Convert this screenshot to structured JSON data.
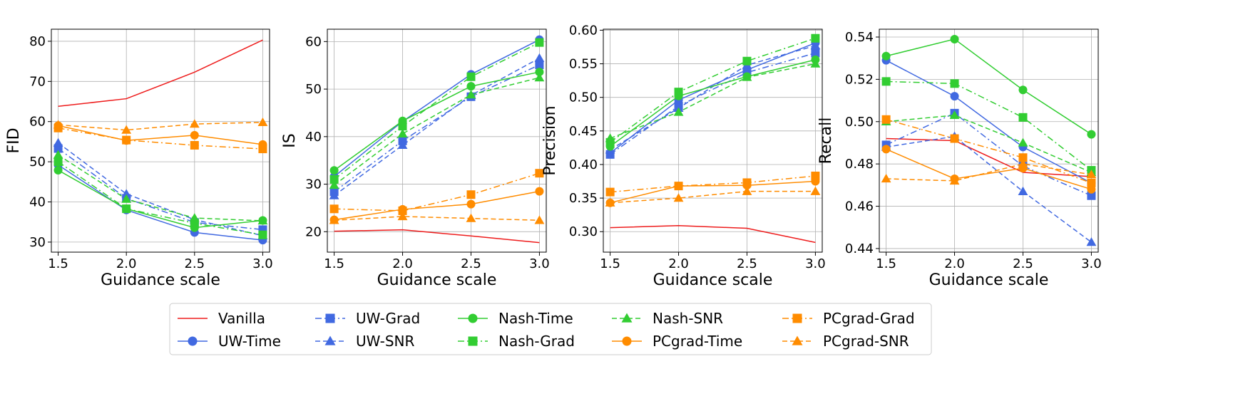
{
  "figure": {
    "legend_location": "bottom-center",
    "legend_columns": 5
  },
  "series_styles": {
    "Vanilla": {
      "color": "#ee1c1c",
      "dash": "solid",
      "marker": "none"
    },
    "UW-Time": {
      "color": "#4169e1",
      "dash": "solid",
      "marker": "circle"
    },
    "UW-Grad": {
      "color": "#4169e1",
      "dash": "dashdot",
      "marker": "square"
    },
    "UW-SNR": {
      "color": "#4169e1",
      "dash": "dashed",
      "marker": "triangle"
    },
    "Nash-Time": {
      "color": "#32cd32",
      "dash": "solid",
      "marker": "circle"
    },
    "Nash-Grad": {
      "color": "#32cd32",
      "dash": "dashdot",
      "marker": "square"
    },
    "Nash-SNR": {
      "color": "#32cd32",
      "dash": "dashed",
      "marker": "triangle"
    },
    "PCgrad-Time": {
      "color": "#ff8c00",
      "dash": "solid",
      "marker": "circle"
    },
    "PCgrad-Grad": {
      "color": "#ff8c00",
      "dash": "dashdot",
      "marker": "square"
    },
    "PCgrad-SNR": {
      "color": "#ff8c00",
      "dash": "dashed",
      "marker": "triangle"
    }
  },
  "legend": {
    "entries": [
      "Vanilla",
      "UW-Time",
      "UW-Grad",
      "UW-SNR",
      "Nash-Time",
      "Nash-Grad",
      "Nash-SNR",
      "PCgrad-Time",
      "PCgrad-Grad",
      "PCgrad-SNR"
    ]
  },
  "chart_data": [
    {
      "type": "line",
      "xlabel": "Guidance scale",
      "ylabel": "FID",
      "x": [
        1.5,
        2.0,
        2.5,
        3.0
      ],
      "xticks": [
        "1.5",
        "2.0",
        "2.5",
        "3.0"
      ],
      "xlim": [
        1.45,
        3.05
      ],
      "ylim": [
        27.5,
        83
      ],
      "yticks": [
        30,
        40,
        50,
        60,
        70,
        80
      ],
      "grid": true,
      "series": [
        {
          "name": "Vanilla",
          "values": [
            63.8,
            65.7,
            72.3,
            80.3
          ]
        },
        {
          "name": "UW-Time",
          "values": [
            49.2,
            38.0,
            32.4,
            30.5
          ]
        },
        {
          "name": "UW-Grad",
          "values": [
            53.3,
            40.9,
            34.9,
            33.1
          ]
        },
        {
          "name": "UW-SNR",
          "values": [
            54.7,
            42.0,
            35.6,
            31.6
          ]
        },
        {
          "name": "Nash-Time",
          "values": [
            47.9,
            38.3,
            33.6,
            35.4
          ]
        },
        {
          "name": "Nash-Grad",
          "values": [
            50.0,
            38.3,
            34.7,
            31.8
          ]
        },
        {
          "name": "Nash-SNR",
          "values": [
            51.7,
            40.7,
            36.0,
            35.3
          ]
        },
        {
          "name": "PCgrad-Time",
          "values": [
            59.0,
            55.3,
            56.6,
            54.3
          ]
        },
        {
          "name": "PCgrad-Grad",
          "values": [
            58.4,
            55.4,
            54.1,
            53.2
          ]
        },
        {
          "name": "PCgrad-SNR",
          "values": [
            59.2,
            57.9,
            59.4,
            59.8
          ]
        }
      ]
    },
    {
      "type": "line",
      "xlabel": "Guidance scale",
      "ylabel": "IS",
      "x": [
        1.5,
        2.0,
        2.5,
        3.0
      ],
      "xticks": [
        "1.5",
        "2.0",
        "2.5",
        "3.0"
      ],
      "xlim": [
        1.45,
        3.05
      ],
      "ylim": [
        15.7,
        62.6
      ],
      "yticks": [
        20,
        30,
        40,
        50,
        60
      ],
      "grid": true,
      "series": [
        {
          "name": "Vanilla",
          "values": [
            20.1,
            20.4,
            19.1,
            17.7
          ]
        },
        {
          "name": "UW-Time",
          "values": [
            31.6,
            43.2,
            53.1,
            60.4
          ]
        },
        {
          "name": "UW-Grad",
          "values": [
            28.4,
            39.1,
            48.4,
            55.1
          ]
        },
        {
          "name": "UW-SNR",
          "values": [
            27.6,
            38.2,
            48.7,
            56.5
          ]
        },
        {
          "name": "Nash-Time",
          "values": [
            32.9,
            43.3,
            50.6,
            53.6
          ]
        },
        {
          "name": "Nash-Grad",
          "values": [
            31.0,
            42.2,
            52.6,
            59.8
          ]
        },
        {
          "name": "Nash-SNR",
          "values": [
            29.8,
            40.6,
            48.8,
            52.4
          ]
        },
        {
          "name": "PCgrad-Time",
          "values": [
            22.5,
            24.7,
            25.8,
            28.5
          ]
        },
        {
          "name": "PCgrad-Grad",
          "values": [
            24.8,
            24.4,
            27.8,
            32.3
          ]
        },
        {
          "name": "PCgrad-SNR",
          "values": [
            22.4,
            23.2,
            22.8,
            22.4
          ]
        }
      ]
    },
    {
      "type": "line",
      "xlabel": "Guidance scale",
      "ylabel": "Precision",
      "x": [
        1.5,
        2.0,
        2.5,
        3.0
      ],
      "xticks": [
        "1.5",
        "2.0",
        "2.5",
        "3.0"
      ],
      "xlim": [
        1.45,
        3.05
      ],
      "ylim": [
        0.2695,
        0.6015
      ],
      "yticks": [
        0.3,
        0.35,
        0.4,
        0.45,
        0.5,
        0.55,
        0.6
      ],
      "ytick_labels": [
        "0.30",
        "0.35",
        "0.40",
        "0.45",
        "0.50",
        "0.55",
        "0.60"
      ],
      "grid": true,
      "series": [
        {
          "name": "Vanilla",
          "values": [
            0.306,
            0.309,
            0.305,
            0.284
          ]
        },
        {
          "name": "UW-Time",
          "values": [
            0.417,
            0.496,
            0.541,
            0.581
          ]
        },
        {
          "name": "UW-Grad",
          "values": [
            0.415,
            0.487,
            0.537,
            0.566
          ]
        },
        {
          "name": "UW-SNR",
          "values": [
            0.422,
            0.484,
            0.548,
            0.577
          ]
        },
        {
          "name": "Nash-Time",
          "values": [
            0.427,
            0.502,
            0.531,
            0.556
          ]
        },
        {
          "name": "Nash-Grad",
          "values": [
            0.433,
            0.508,
            0.554,
            0.588
          ]
        },
        {
          "name": "Nash-SNR",
          "values": [
            0.439,
            0.478,
            0.53,
            0.55
          ]
        },
        {
          "name": "PCgrad-Time",
          "values": [
            0.343,
            0.368,
            0.369,
            0.375
          ]
        },
        {
          "name": "PCgrad-Grad",
          "values": [
            0.359,
            0.368,
            0.373,
            0.383
          ]
        },
        {
          "name": "PCgrad-SNR",
          "values": [
            0.343,
            0.35,
            0.36,
            0.36
          ]
        }
      ]
    },
    {
      "type": "line",
      "xlabel": "Guidance scale",
      "ylabel": "Recall",
      "x": [
        1.5,
        2.0,
        2.5,
        3.0
      ],
      "xticks": [
        "1.5",
        "2.0",
        "2.5",
        "3.0"
      ],
      "xlim": [
        1.45,
        3.05
      ],
      "ylim": [
        0.4383,
        0.5437
      ],
      "yticks": [
        0.44,
        0.46,
        0.48,
        0.5,
        0.52,
        0.54
      ],
      "ytick_labels": [
        "0.44",
        "0.46",
        "0.48",
        "0.50",
        "0.52",
        "0.54"
      ],
      "grid": true,
      "series": [
        {
          "name": "Vanilla",
          "values": [
            0.492,
            0.491,
            0.476,
            0.474
          ]
        },
        {
          "name": "UW-Time",
          "values": [
            0.529,
            0.512,
            0.488,
            0.471
          ]
        },
        {
          "name": "UW-Grad",
          "values": [
            0.489,
            0.504,
            0.479,
            0.465
          ]
        },
        {
          "name": "UW-SNR",
          "values": [
            0.488,
            0.493,
            0.467,
            0.443
          ]
        },
        {
          "name": "Nash-Time",
          "values": [
            0.531,
            0.539,
            0.515,
            0.494
          ]
        },
        {
          "name": "Nash-Grad",
          "values": [
            0.519,
            0.518,
            0.502,
            0.477
          ]
        },
        {
          "name": "Nash-SNR",
          "values": [
            0.5,
            0.503,
            0.49,
            0.476
          ]
        },
        {
          "name": "PCgrad-Time",
          "values": [
            0.487,
            0.473,
            0.478,
            0.468
          ]
        },
        {
          "name": "PCgrad-Grad",
          "values": [
            0.501,
            0.492,
            0.483,
            0.471
          ]
        },
        {
          "name": "PCgrad-SNR",
          "values": [
            0.473,
            0.472,
            0.48,
            0.475
          ]
        }
      ]
    }
  ]
}
